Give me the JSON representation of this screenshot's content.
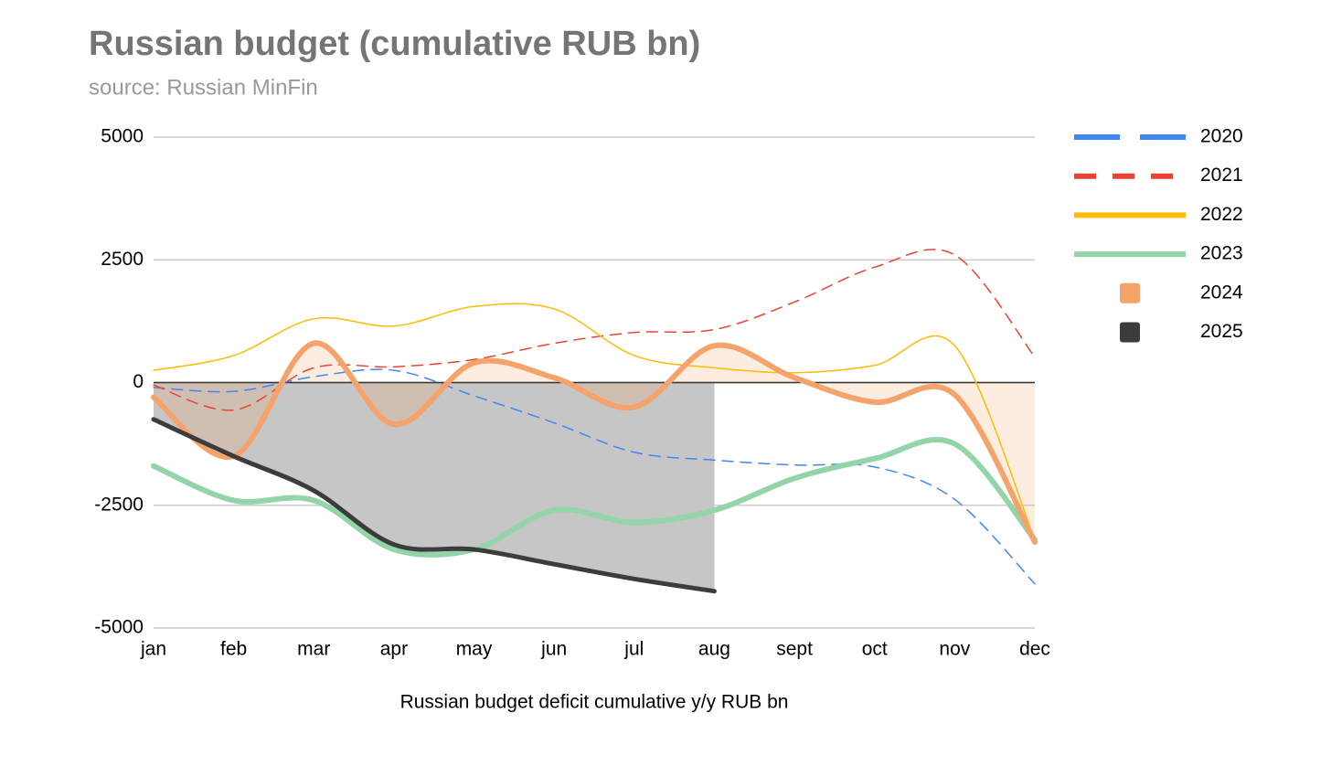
{
  "chart_data": {
    "type": "line",
    "title": "Russian budget (cumulative RUB bn)",
    "subtitle": "source: Russian MinFin",
    "x_label": "Russian budget deficit cumulative y/y RUB bn",
    "categories": [
      "jan",
      "feb",
      "mar",
      "apr",
      "may",
      "jun",
      "jul",
      "aug",
      "sept",
      "oct",
      "nov",
      "dec"
    ],
    "ylim": [
      -5000,
      5000
    ],
    "yticks": [
      -5000,
      -2500,
      0,
      2500,
      5000
    ],
    "grid": true,
    "legend": "right",
    "series": [
      {
        "name": "2020",
        "color": "#4285f4",
        "dashed": true,
        "width": 1.5,
        "values": [
          -100,
          -180,
          120,
          250,
          -270,
          -820,
          -1420,
          -1580,
          -1680,
          -1720,
          -2380,
          -4100
        ]
      },
      {
        "name": "2021",
        "color": "#ea4335",
        "dashed": true,
        "width": 1.5,
        "values": [
          -50,
          -560,
          300,
          320,
          470,
          800,
          1020,
          1080,
          1640,
          2350,
          2600,
          520
        ]
      },
      {
        "name": "2022",
        "color": "#fbbc04",
        "width": 1.5,
        "values": [
          250,
          550,
          1300,
          1150,
          1550,
          1500,
          550,
          300,
          200,
          350,
          750,
          -3200
        ]
      },
      {
        "name": "2023",
        "color": "#93d5a8",
        "width": 6,
        "values": [
          -1700,
          -2400,
          -2400,
          -3400,
          -3400,
          -2600,
          -2850,
          -2600,
          -1950,
          -1550,
          -1250,
          -3200
        ]
      },
      {
        "name": "2024",
        "color": "#f4a46a",
        "width": 6,
        "area": true,
        "values": [
          -300,
          -1500,
          800,
          -850,
          400,
          100,
          -500,
          750,
          100,
          -400,
          -250,
          -3250
        ]
      },
      {
        "name": "2025",
        "color": "#3c3c3c",
        "width": 5,
        "area": true,
        "area_color": "#c6c6c6",
        "values": [
          -750,
          -1500,
          -2200,
          -3300,
          -3400,
          -3700,
          -4000,
          -4250,
          null,
          null,
          null,
          null
        ]
      }
    ]
  }
}
